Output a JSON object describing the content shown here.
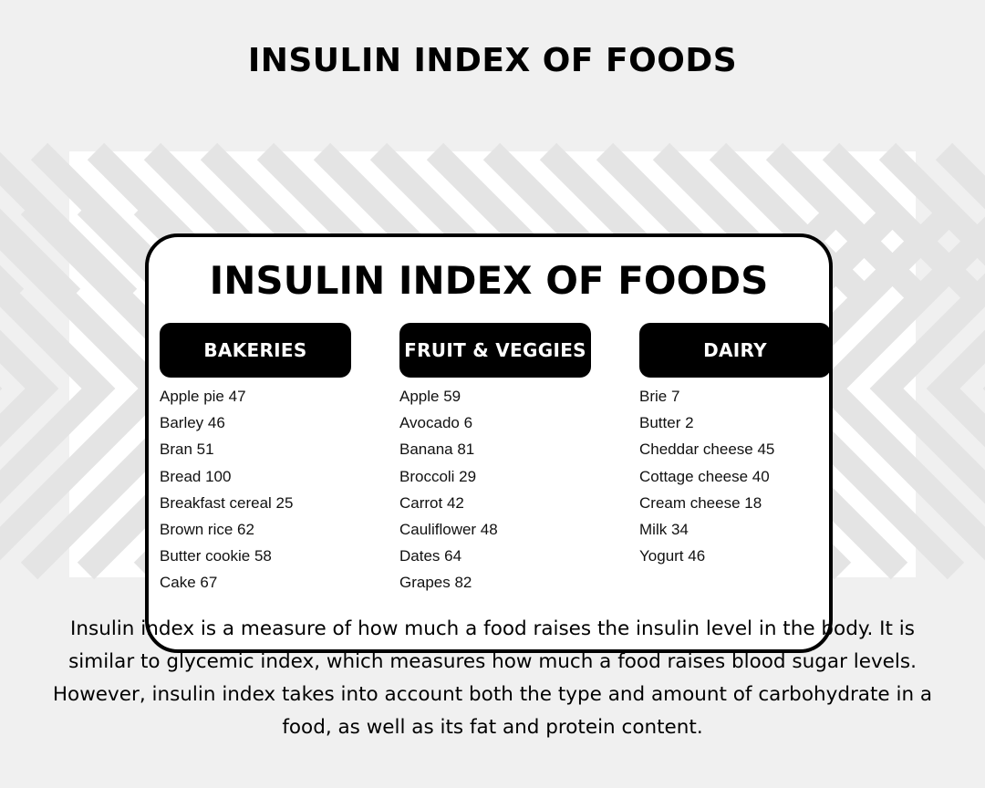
{
  "page": {
    "title": "INSULIN INDEX OF FOODS"
  },
  "card": {
    "title": "INSULIN INDEX OF FOODS",
    "columns": [
      {
        "heading": "BAKERIES",
        "items": [
          "Apple pie 47",
          "Barley 46",
          "Bran 51",
          "Bread 100",
          "Breakfast cereal 25",
          "Brown rice 62",
          "Butter cookie 58",
          "Cake 67"
        ]
      },
      {
        "heading": "FRUIT & VEGGIES",
        "items": [
          "Apple 59",
          "Avocado 6",
          "Banana 81",
          "Broccoli 29",
          "Carrot 42",
          "Cauliflower 48",
          "Dates 64",
          "Grapes 82"
        ]
      },
      {
        "heading": "DAIRY",
        "items": [
          "Brie 7",
          "Butter 2",
          "Cheddar cheese 45",
          "Cottage cheese 40",
          "Cream cheese 18",
          "Milk 34",
          "Yogurt 46"
        ]
      }
    ]
  },
  "description": "Insulin index is a measure of how much a food raises the insulin level in the body. It is similar to glycemic index, which measures how much a food raises blood sugar levels. However, insulin index takes into account both the type and amount of carbohydrate in a food, as well as its fat and protein content.",
  "colors": {
    "background": "#f0f0f0",
    "stripe": "#e4e4e4",
    "ink": "#000000"
  }
}
